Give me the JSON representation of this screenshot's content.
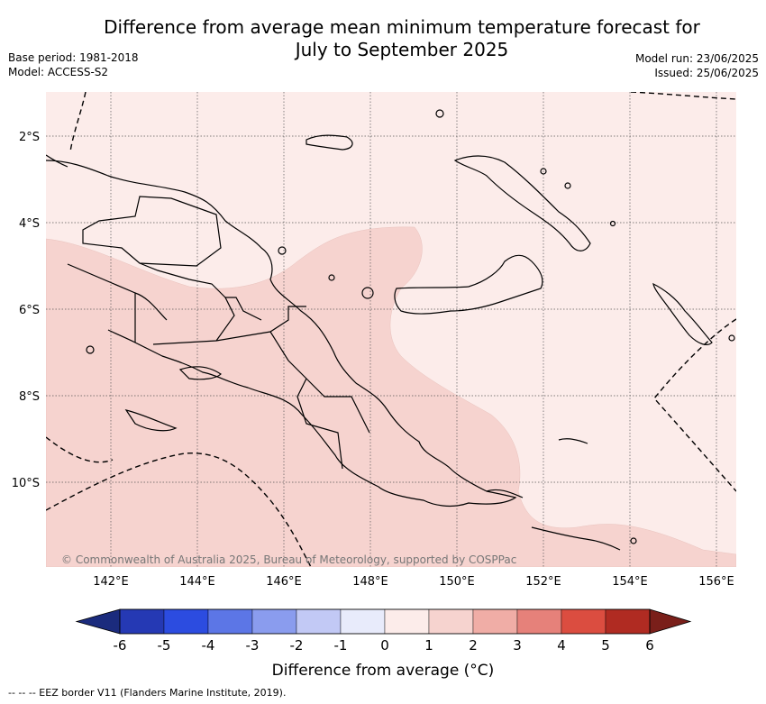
{
  "title_line1": "Difference from average mean minimum temperature forecast for",
  "title_line2": "July to September 2025",
  "base_period": "Base period: 1981-2018",
  "model": "Model: ACCESS-S2",
  "model_run": "Model run: 23/06/2025",
  "issued": "Issued: 25/06/2025",
  "credit": "© Commonwealth of Australia 2025, Bureau of Meteorology, supported by COSPPac",
  "lat_labels": [
    "2°S",
    "4°S",
    "6°S",
    "8°S",
    "10°S"
  ],
  "lon_labels": [
    "142°E",
    "144°E",
    "146°E",
    "148°E",
    "150°E",
    "152°E",
    "154°E",
    "156°E"
  ],
  "colorbar": {
    "title": "Difference from average (°C)",
    "ticks": [
      "-6",
      "-5",
      "-4",
      "-3",
      "-2",
      "-1",
      "0",
      "1",
      "2",
      "3",
      "4",
      "5",
      "6"
    ],
    "colors": [
      "#1b2b7d",
      "#2539b4",
      "#2c4ce0",
      "#5c76e6",
      "#8a9cee",
      "#c2c9f5",
      "#e8ebfb",
      "#fcecea",
      "#f6d3cf",
      "#f0ada6",
      "#e6817a",
      "#db4d40",
      "#b02b22",
      "#7a1f1a"
    ],
    "colors_note": "first = lower extension, last = upper extension"
  },
  "map_colors": {
    "class_0_to_1": "#fcecea",
    "class_1_to_2": "#f6d3cf",
    "coast": "#000000",
    "grid": "#555555"
  },
  "footnote": "-- -- -- EEZ border V11 (Flanders Marine Institute, 2019)."
}
